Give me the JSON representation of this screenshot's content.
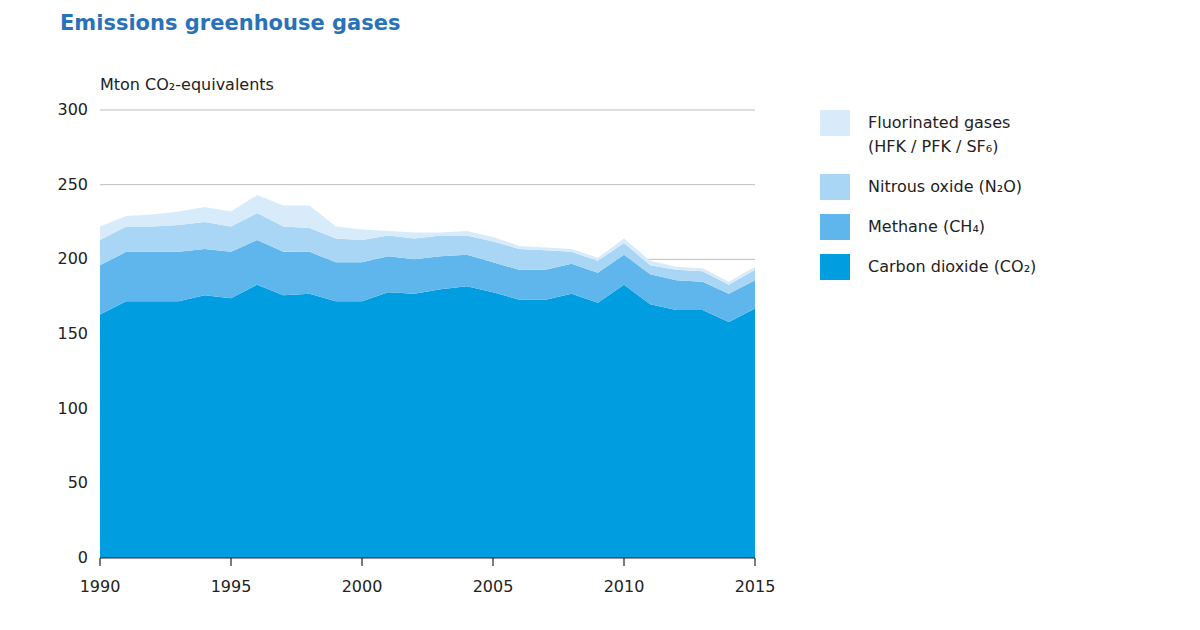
{
  "chart_data": {
    "type": "area",
    "stacked": true,
    "grid": true,
    "legend": "right",
    "title": "Emissions greenhouse gases",
    "y_label": "Mton CO₂-equivalents",
    "x": [
      1990,
      1991,
      1992,
      1993,
      1994,
      1995,
      1996,
      1997,
      1998,
      1999,
      2000,
      2001,
      2002,
      2003,
      2004,
      2005,
      2006,
      2007,
      2008,
      2009,
      2010,
      2011,
      2012,
      2013,
      2014,
      2015
    ],
    "xlim": [
      1990,
      2015
    ],
    "xticks": [
      1990,
      1995,
      2000,
      2005,
      2010,
      2015
    ],
    "ylim": [
      0,
      300
    ],
    "yticks": [
      0,
      50,
      100,
      150,
      200,
      250,
      300
    ],
    "series": [
      {
        "name": "Carbon dioxide (CO₂)",
        "color": "#009ee0",
        "values": [
          163,
          172,
          172,
          172,
          176,
          174,
          183,
          176,
          177,
          172,
          172,
          178,
          177,
          180,
          182,
          178,
          173,
          173,
          177,
          171,
          183,
          170,
          166,
          166,
          158,
          167
        ]
      },
      {
        "name": "Methane (CH₄)",
        "color": "#5fb6ec",
        "values": [
          33,
          33,
          33,
          33,
          31,
          31,
          30,
          29,
          28,
          26,
          26,
          24,
          23,
          22,
          21,
          20,
          20,
          20,
          20,
          20,
          20,
          20,
          20,
          19,
          19,
          19
        ]
      },
      {
        "name": "Nitrous oxide (N₂O)",
        "color": "#a9d6f4",
        "values": [
          17,
          17,
          17,
          18,
          18,
          17,
          18,
          17,
          16,
          16,
          15,
          14,
          14,
          14,
          13,
          14,
          14,
          13,
          8,
          8,
          8,
          6,
          7,
          7,
          6,
          7
        ]
      },
      {
        "name": "Fluorinated gases (HFK / PFK / SF₆)",
        "color": "#d7ebfb",
        "values": [
          9,
          7,
          8,
          9,
          10,
          10,
          12,
          14,
          15,
          8,
          7,
          3,
          4,
          2,
          3,
          3,
          2,
          2,
          2,
          2,
          3,
          3,
          2,
          2,
          2,
          2
        ]
      }
    ]
  }
}
